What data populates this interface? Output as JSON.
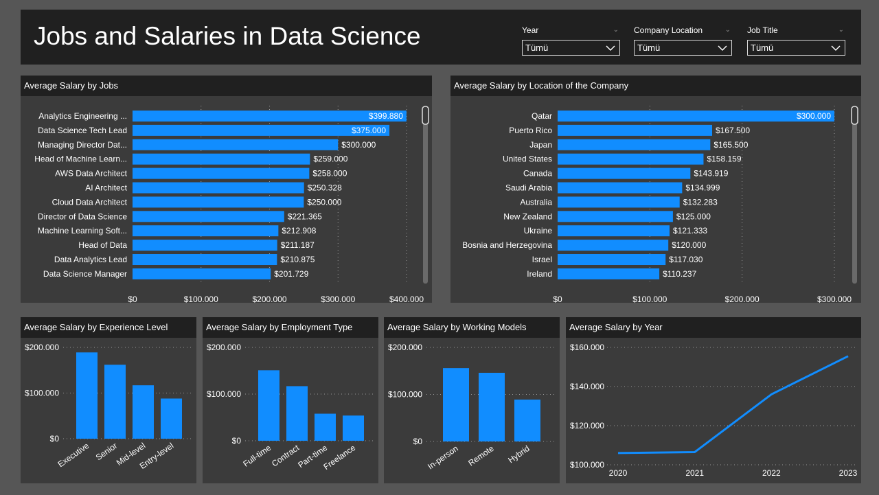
{
  "header": {
    "title": "Jobs and Salaries in Data Science",
    "filters": [
      {
        "label": "Year",
        "value": "Tümü"
      },
      {
        "label": "Company Location",
        "value": "Tümü"
      },
      {
        "label": "Job Title",
        "value": "Tümü"
      }
    ]
  },
  "colors": {
    "bar": "#118dff",
    "background": "#565656",
    "panel": "#3b3b3b",
    "header": "#202020"
  },
  "chart_data": [
    {
      "id": "jobs",
      "type": "bar",
      "orientation": "horizontal",
      "title": "Average Salary by Jobs",
      "categories": [
        "Analytics Engineering ...",
        "Data Science Tech Lead",
        "Managing Director Dat...",
        "Head of Machine Learn...",
        "AWS Data Architect",
        "AI Architect",
        "Cloud Data Architect",
        "Director of Data Science",
        "Machine Learning Soft...",
        "Head of Data",
        "Data Analytics Lead",
        "Data Science Manager"
      ],
      "values": [
        399880,
        375000,
        300000,
        259000,
        258000,
        250328,
        250000,
        221365,
        212908,
        211187,
        210875,
        201729
      ],
      "labels": [
        "$399.880",
        "$375.000",
        "$300.000",
        "$259.000",
        "$258.000",
        "$250.328",
        "$250.000",
        "$221.365",
        "$212.908",
        "$211.187",
        "$210.875",
        "$201.729"
      ],
      "ticks": [
        0,
        100000,
        200000,
        300000,
        400000
      ],
      "tick_labels": [
        "$0",
        "$100.000",
        "$200.000",
        "$300.000",
        "$400.000"
      ],
      "xlim": [
        0,
        400000
      ],
      "grid": true
    },
    {
      "id": "location",
      "type": "bar",
      "orientation": "horizontal",
      "title": "Average Salary by Location of the Company",
      "categories": [
        "Qatar",
        "Puerto Rico",
        "Japan",
        "United States",
        "Canada",
        "Saudi Arabia",
        "Australia",
        "New Zealand",
        "Ukraine",
        "Bosnia and Herzegovina",
        "Israel",
        "Ireland"
      ],
      "values": [
        300000,
        167500,
        165500,
        158159,
        143919,
        134999,
        132283,
        125000,
        121333,
        120000,
        117030,
        110237
      ],
      "labels": [
        "$300.000",
        "$167.500",
        "$165.500",
        "$158.159",
        "$143.919",
        "$134.999",
        "$132.283",
        "$125.000",
        "$121.333",
        "$120.000",
        "$117.030",
        "$110.237"
      ],
      "ticks": [
        0,
        100000,
        200000,
        300000
      ],
      "tick_labels": [
        "$0",
        "$100.000",
        "$200.000",
        "$300.000"
      ],
      "xlim": [
        0,
        300000
      ],
      "grid": true
    },
    {
      "id": "experience",
      "type": "bar",
      "title": "Average Salary by Experience Level",
      "categories": [
        "Executive",
        "Senior",
        "Mid-level",
        "Entry-level"
      ],
      "values": [
        189000,
        162000,
        117000,
        88000
      ],
      "ticks": [
        0,
        100000,
        200000
      ],
      "tick_labels": [
        "$0",
        "$100.000",
        "$200.000"
      ],
      "ylim": [
        0,
        200000
      ],
      "grid": true
    },
    {
      "id": "employment",
      "type": "bar",
      "title": "Average Salary by Employment Type",
      "categories": [
        "Full-time",
        "Contract",
        "Part-time",
        "Freelance"
      ],
      "values": [
        151000,
        117000,
        58000,
        54000
      ],
      "ticks": [
        0,
        100000,
        200000
      ],
      "tick_labels": [
        "$0",
        "$100.000",
        "$200.000"
      ],
      "ylim": [
        0,
        200000
      ],
      "grid": true
    },
    {
      "id": "working",
      "type": "bar",
      "title": "Average Salary by Working Models",
      "categories": [
        "In-person",
        "Remote",
        "Hybrid"
      ],
      "values": [
        156000,
        146000,
        89000
      ],
      "ticks": [
        0,
        100000,
        200000
      ],
      "tick_labels": [
        "$0",
        "$100.000",
        "$200.000"
      ],
      "ylim": [
        0,
        200000
      ],
      "grid": true
    },
    {
      "id": "year",
      "type": "line",
      "title": "Average Salary by Year",
      "x": [
        "2020",
        "2021",
        "2022",
        "2023"
      ],
      "values": [
        106000,
        106500,
        136000,
        155500
      ],
      "ticks": [
        100000,
        120000,
        140000,
        160000
      ],
      "tick_labels": [
        "$100.000",
        "$120.000",
        "$140.000",
        "$160.000"
      ],
      "ylim": [
        100000,
        160000
      ],
      "grid": true
    }
  ]
}
